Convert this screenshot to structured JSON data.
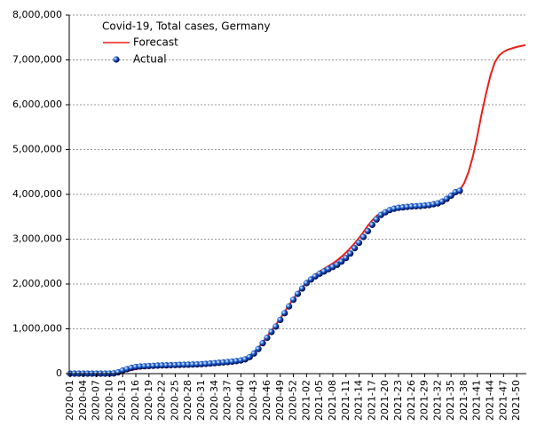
{
  "chart_data": {
    "type": "line",
    "title": "Covid-19, Total cases, Germany",
    "categories": [
      "2020-01",
      null,
      null,
      "2020-04",
      null,
      null,
      "2020-07",
      null,
      null,
      "2020-10",
      null,
      null,
      "2020-13",
      null,
      null,
      "2020-16",
      null,
      null,
      "2020-19",
      null,
      null,
      "2020-22",
      null,
      null,
      "2020-25",
      null,
      null,
      "2020-28",
      null,
      null,
      "2020-31",
      null,
      null,
      "2020-34",
      null,
      null,
      "2020-37",
      null,
      null,
      "2020-40",
      null,
      null,
      "2020-43",
      null,
      null,
      "2020-46",
      null,
      null,
      "2020-49",
      null,
      null,
      "2020-52",
      null,
      null,
      "2021-02",
      null,
      null,
      "2021-05",
      null,
      null,
      "2021-08",
      null,
      null,
      "2021-11",
      null,
      null,
      "2021-14",
      null,
      null,
      "2021-17",
      null,
      null,
      "2021-20",
      null,
      null,
      "2021-23",
      null,
      null,
      "2021-26",
      null,
      null,
      "2021-29",
      null,
      null,
      "2021-32",
      null,
      null,
      "2021-35",
      null,
      null,
      "2021-38",
      null,
      null,
      "2021-41",
      null,
      null,
      "2021-44",
      null,
      null,
      "2021-47",
      null,
      null,
      "2021-50",
      null,
      null
    ],
    "series": [
      {
        "name": "Forecast",
        "color": "#e8201a",
        "mode": "line",
        "values": [
          0,
          0,
          0,
          0,
          0,
          0,
          0,
          0,
          0,
          5000,
          10000,
          20000,
          40000,
          60000,
          80000,
          100000,
          115000,
          125000,
          135000,
          140000,
          145000,
          150000,
          155000,
          160000,
          165000,
          170000,
          175000,
          180000,
          185000,
          190000,
          195000,
          200000,
          205000,
          210000,
          220000,
          230000,
          240000,
          250000,
          265000,
          285000,
          320000,
          380000,
          470000,
          580000,
          700000,
          830000,
          960000,
          1090000,
          1230000,
          1380000,
          1530000,
          1670000,
          1800000,
          1920000,
          2040000,
          2130000,
          2210000,
          2280000,
          2340000,
          2400000,
          2460000,
          2530000,
          2610000,
          2700000,
          2800000,
          2910000,
          3030000,
          3160000,
          3300000,
          3420000,
          3520000,
          3590000,
          3630000,
          3660000,
          3670000,
          3680000,
          3690000,
          3700000,
          3705000,
          3710000,
          3720000,
          3730000,
          3740000,
          3760000,
          3790000,
          3830000,
          3880000,
          3940000,
          4010000,
          4100000,
          4250000,
          4500000,
          4850000,
          5300000,
          5800000,
          6250000,
          6650000,
          6950000,
          7100000,
          7180000,
          7230000,
          7260000,
          7290000,
          7310000,
          7330000
        ]
      },
      {
        "name": "Actual",
        "color": "#1a5fd0",
        "mode": "markers",
        "values": [
          0,
          0,
          0,
          0,
          0,
          0,
          0,
          0,
          0,
          1000,
          5000,
          30000,
          70000,
          100000,
          130000,
          150000,
          160000,
          165000,
          170000,
          175000,
          180000,
          183000,
          185000,
          188000,
          192000,
          195000,
          198000,
          200000,
          203000,
          207000,
          212000,
          218000,
          226000,
          234000,
          242000,
          250000,
          258000,
          268000,
          280000,
          295000,
          320000,
          370000,
          450000,
          550000,
          680000,
          800000,
          930000,
          1050000,
          1200000,
          1350000,
          1500000,
          1650000,
          1780000,
          1900000,
          2020000,
          2100000,
          2170000,
          2230000,
          2280000,
          2330000,
          2380000,
          2430000,
          2500000,
          2580000,
          2680000,
          2800000,
          2920000,
          3050000,
          3180000,
          3320000,
          3440000,
          3540000,
          3600000,
          3650000,
          3680000,
          3700000,
          3710000,
          3720000,
          3730000,
          3735000,
          3740000,
          3750000,
          3760000,
          3780000,
          3800000,
          3840000,
          3900000,
          3970000,
          4050000,
          4080000,
          null,
          null,
          null,
          null,
          null,
          null,
          null,
          null,
          null,
          null,
          null,
          null,
          null,
          null,
          null
        ]
      }
    ],
    "ylim": [
      0,
      8000000
    ],
    "yticks": [
      0,
      {
        "value": 1000000,
        "label": "1,000,000"
      },
      {
        "value": 2000000,
        "label": "2,000,000"
      },
      {
        "value": 3000000,
        "label": "3,000,000"
      },
      {
        "value": 4000000,
        "label": "4,000,000"
      },
      {
        "value": 5000000,
        "label": "5,000,000"
      },
      {
        "value": 6000000,
        "label": "6,000,000"
      },
      {
        "value": 7000000,
        "label": "7,000,000"
      },
      {
        "value": 8000000,
        "label": "8,000,000"
      }
    ],
    "grid": true
  }
}
